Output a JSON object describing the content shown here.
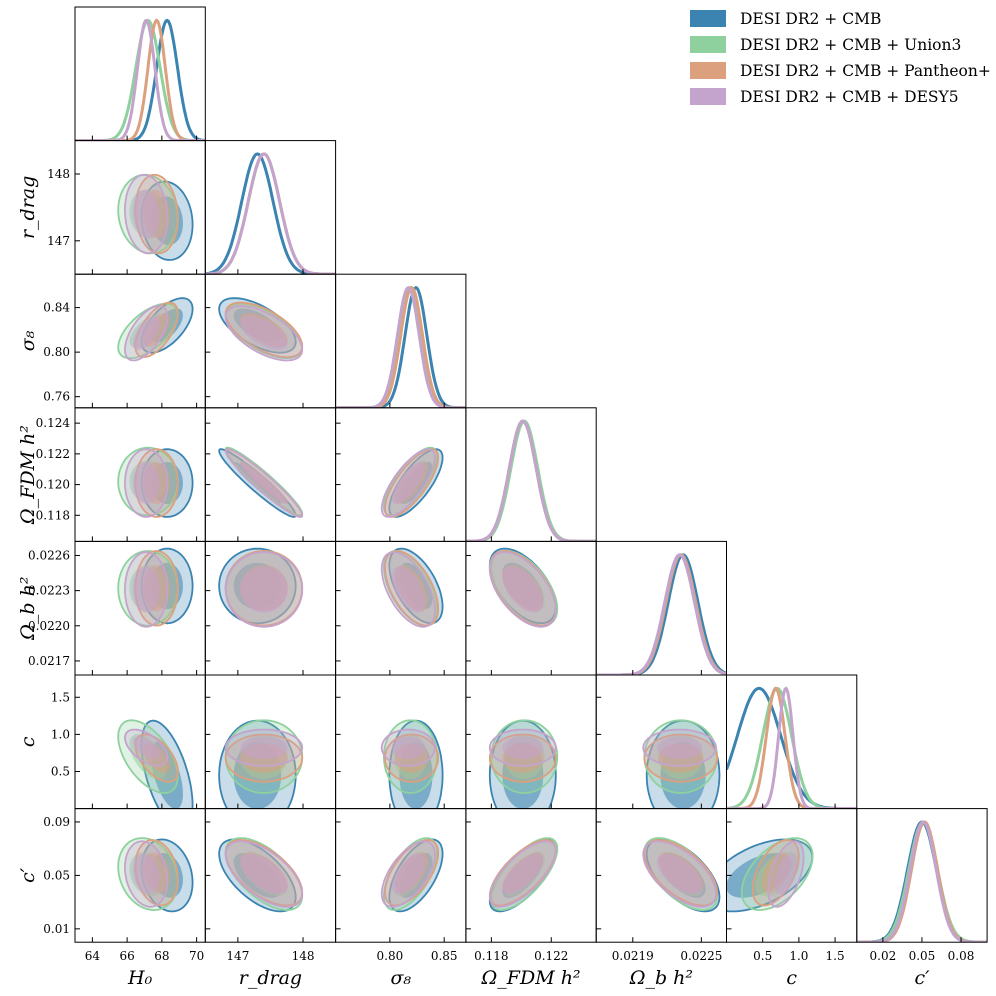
{
  "chart_data": {
    "type": "scatter",
    "subtype": "corner-plot",
    "title": "",
    "parameters": [
      {
        "key": "H0",
        "label": "H₀",
        "range": [
          63,
          70.5
        ],
        "ticks": [
          64,
          66,
          68,
          70
        ],
        "tick_labels": [
          "64",
          "66",
          "68",
          "70"
        ]
      },
      {
        "key": "rdrag",
        "label": "r_drag",
        "range": [
          146.5,
          148.5
        ],
        "ticks": [
          147,
          148
        ],
        "tick_labels": [
          "147",
          "148"
        ]
      },
      {
        "key": "sigma8",
        "label": "σ₈",
        "range": [
          0.75,
          0.87
        ],
        "ticks": [
          0.76,
          0.8,
          0.84
        ],
        "tick_labels": [
          "0.76",
          "0.80",
          "0.84"
        ],
        "x_ticks": [
          0.8,
          0.85
        ],
        "x_tick_labels": [
          "0.80",
          "0.85"
        ]
      },
      {
        "key": "OmFDM",
        "label": "Ω_FDM h²",
        "range": [
          0.1163,
          0.125
        ],
        "ticks": [
          0.118,
          0.12,
          0.122,
          0.124
        ],
        "tick_labels": [
          "0.118",
          "0.120",
          "0.122",
          "0.124"
        ],
        "x_ticks": [
          0.118,
          0.122
        ],
        "x_tick_labels": [
          "0.118",
          "0.122"
        ]
      },
      {
        "key": "Ombh2",
        "label": "Ω_b h²",
        "range": [
          0.02158,
          0.02272
        ],
        "ticks": [
          0.0217,
          0.022,
          0.0223,
          0.0226
        ],
        "tick_labels": [
          "0.0217",
          "0.0220",
          "0.0223",
          "0.0226"
        ],
        "x_ticks": [
          0.0219,
          0.0225
        ],
        "x_tick_labels": [
          "0.0219",
          "0.0225"
        ]
      },
      {
        "key": "c",
        "label": "c",
        "range": [
          0,
          1.8
        ],
        "ticks": [
          0.5,
          1.0,
          1.5
        ],
        "tick_labels": [
          "0.5",
          "1.0",
          "1.5"
        ]
      },
      {
        "key": "cprime",
        "label": "c′",
        "range": [
          0.0,
          0.1
        ],
        "ticks": [
          0.01,
          0.05,
          0.09
        ],
        "tick_labels": [
          "0.01",
          "0.05",
          "0.09"
        ],
        "x_ticks": [
          0.02,
          0.05,
          0.08
        ],
        "x_tick_labels": [
          "0.02",
          "0.05",
          "0.08"
        ]
      }
    ],
    "series": [
      {
        "name": "DESI DR2 + CMB",
        "color": "#3b84b1",
        "means": [
          68.3,
          147.3,
          0.824,
          0.1201,
          0.02234,
          0.45,
          0.05
        ],
        "sigmas": [
          0.6,
          0.24,
          0.01,
          0.0009,
          0.00013,
          0.3,
          0.011
        ]
      },
      {
        "name": "DESI DR2 + CMB + Union3",
        "color": "#8fd19e",
        "means": [
          67.2,
          147.4,
          0.819,
          0.1202,
          0.02232,
          0.7,
          0.051
        ],
        "sigmas": [
          0.7,
          0.24,
          0.01,
          0.0009,
          0.00013,
          0.2,
          0.011
        ]
      },
      {
        "name": "DESI DR2 + CMB + Pantheon+",
        "color": "#dca07e",
        "means": [
          67.7,
          147.4,
          0.82,
          0.1201,
          0.02232,
          0.68,
          0.052
        ],
        "sigmas": [
          0.5,
          0.24,
          0.01,
          0.0009,
          0.00013,
          0.13,
          0.01
        ]
      },
      {
        "name": "DESI DR2 + CMB + DESY5",
        "color": "#c4a3cc",
        "means": [
          67.1,
          147.4,
          0.817,
          0.1201,
          0.02231,
          0.82,
          0.051
        ],
        "sigmas": [
          0.5,
          0.24,
          0.01,
          0.0009,
          0.00013,
          0.1,
          0.01
        ]
      }
    ],
    "correlations": {
      "H0-rdrag": -0.1,
      "H0-sigma8": 0.6,
      "H0-OmFDM": 0.0,
      "H0-Ombh2": 0.0,
      "H0-c": -0.55,
      "H0-cprime": -0.2,
      "rdrag-sigma8": -0.6,
      "rdrag-OmFDM": -0.95,
      "rdrag-Ombh2": 0.0,
      "rdrag-c": 0.0,
      "rdrag-cprime": -0.6,
      "sigma8-OmFDM": 0.75,
      "sigma8-Ombh2": -0.55,
      "sigma8-c": 0.0,
      "sigma8-cprime": 0.6,
      "OmFDM-Ombh2": -0.55,
      "OmFDM-c": 0.0,
      "OmFDM-cprime": 0.7,
      "Ombh2-c": 0.0,
      "Ombh2-cprime": -0.6,
      "c-cprime": 0.5
    },
    "legend_position": "top-right",
    "grid": false
  }
}
